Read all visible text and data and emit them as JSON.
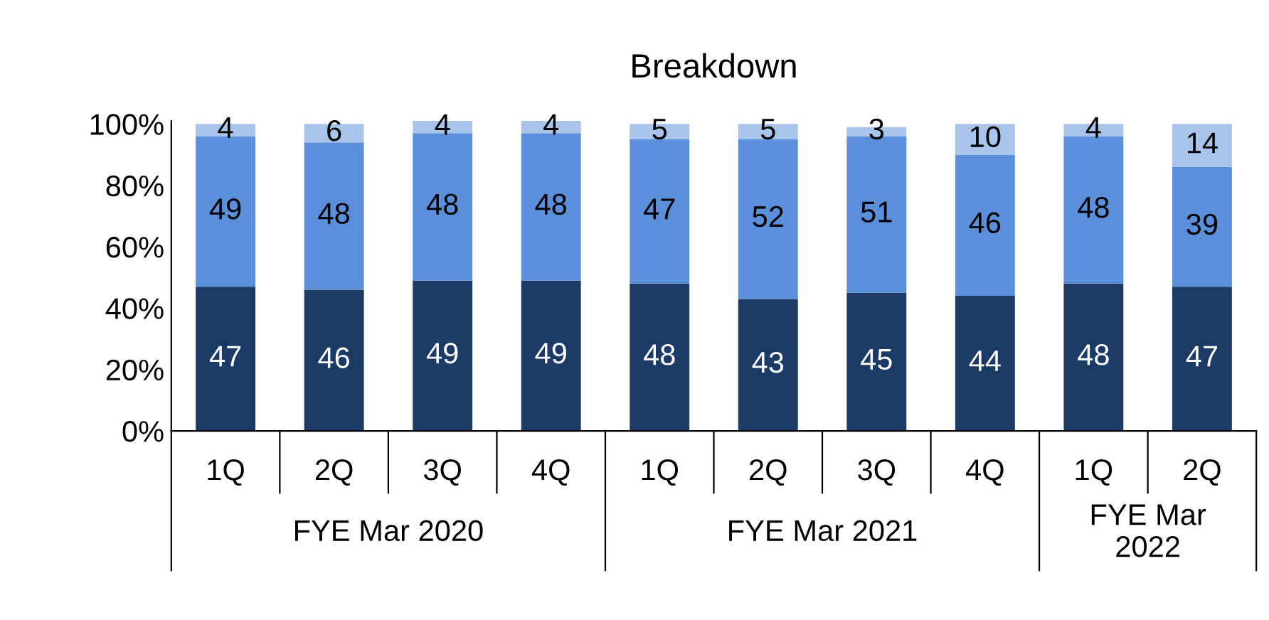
{
  "chart_data": {
    "type": "bar",
    "title": "Breakdown",
    "stacked": true,
    "data_labels": true,
    "categories": [
      "1Q",
      "2Q",
      "3Q",
      "4Q",
      "1Q",
      "2Q",
      "3Q",
      "4Q",
      "1Q",
      "2Q"
    ],
    "series": [
      {
        "color": "#1b3a66",
        "values": [
          47,
          46,
          49,
          49,
          48,
          43,
          45,
          44,
          48,
          47
        ]
      },
      {
        "color": "#5b8fd9",
        "values": [
          49,
          48,
          48,
          48,
          47,
          52,
          51,
          46,
          48,
          39
        ]
      },
      {
        "color": "#a9c4ea",
        "values": [
          4,
          6,
          4,
          4,
          5,
          5,
          3,
          10,
          4,
          14
        ]
      }
    ],
    "ylim": [
      0,
      101
    ],
    "yticks": [
      {
        "value": 0,
        "label": "0%"
      },
      {
        "value": 20,
        "label": "20%"
      },
      {
        "value": 40,
        "label": "40%"
      },
      {
        "value": 60,
        "label": "60%"
      },
      {
        "value": 80,
        "label": "80%"
      },
      {
        "value": 100,
        "label": "100%"
      }
    ],
    "annotations": [
      "FYE Mar 2020",
      "FYE Mar 2021",
      "FYE Mar\n2022"
    ],
    "grid": false,
    "legend": false
  }
}
